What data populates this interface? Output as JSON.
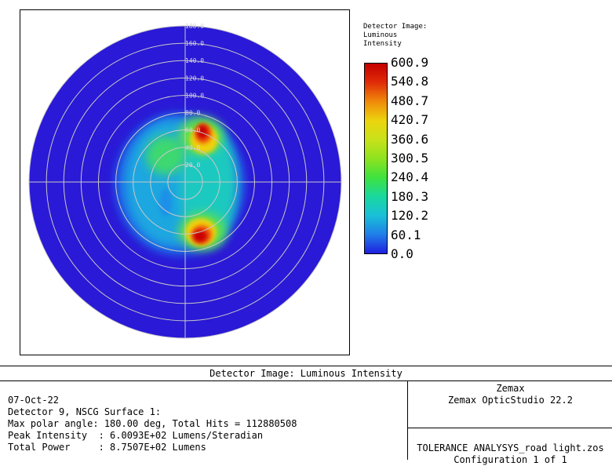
{
  "plot": {
    "radial_labels": [
      "20.0",
      "40.0",
      "60.0",
      "80.0",
      "100.0",
      "120.0",
      "140.0",
      "160.0",
      "180.0"
    ],
    "colors": {
      "background": "#2a19d6",
      "grid": "#c8c8c8"
    }
  },
  "colorbar": {
    "title_lines": [
      "Detector Image:",
      "Luminous",
      "Intensity"
    ],
    "ticks": [
      "600.9",
      "540.8",
      "480.7",
      "420.7",
      "360.6",
      "300.5",
      "240.4",
      "180.3",
      "120.2",
      "60.1",
      "0.0"
    ]
  },
  "footer": {
    "title": "Detector Image: Luminous Intensity",
    "date": "07-Oct-22",
    "detector": "Detector 9, NSCG Surface 1:",
    "max_polar": "Max polar angle: 180.00 deg, Total Hits = 112880508",
    "peak": "Peak Intensity  : 6.0093E+02 Lumens/Steradian",
    "total_power": "Total Power     : 8.7507E+02 Lumens",
    "brand_company": "Zemax",
    "brand_product": "Zemax OpticStudio 22.2",
    "file_name": "TOLERANCE ANALYSYS_road light.zos",
    "configuration": "Configuration 1 of 1"
  }
}
